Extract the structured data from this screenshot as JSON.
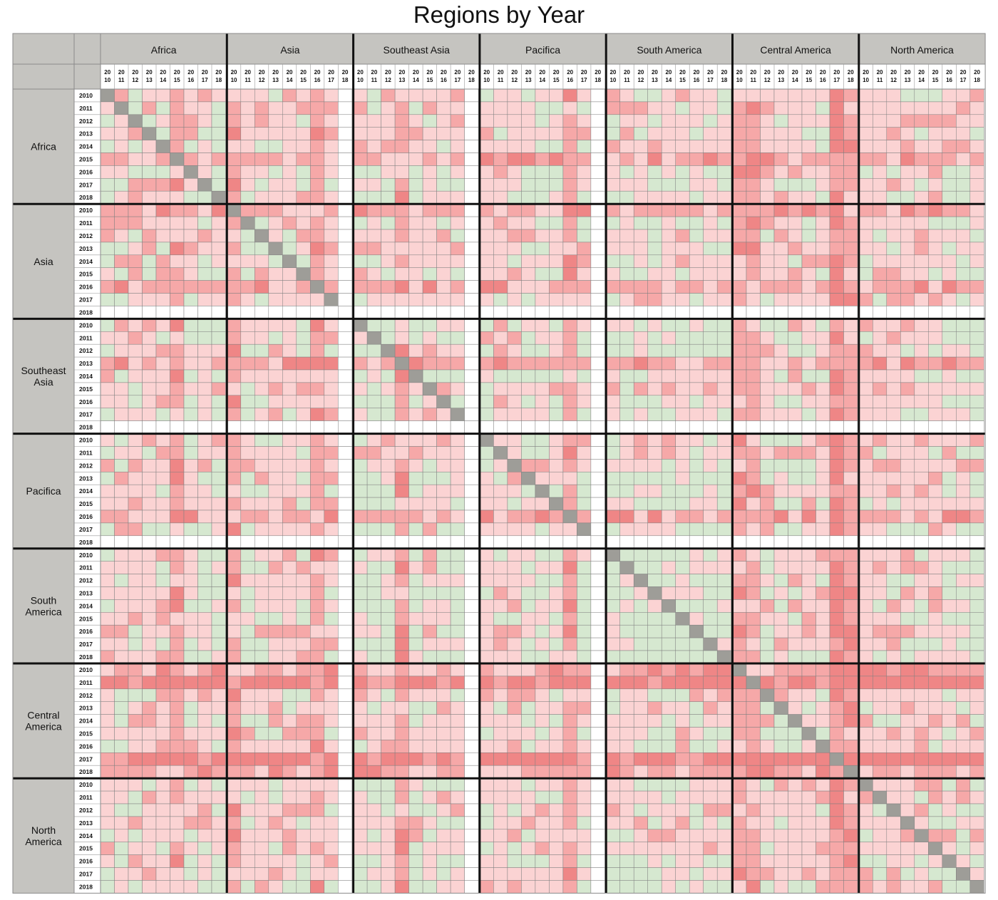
{
  "chart_data": {
    "type": "heatmap",
    "title": "Regions by Year",
    "regions": [
      "Africa",
      "Asia",
      "Southeast Asia",
      "Pacifica",
      "South America",
      "Central America",
      "North America"
    ],
    "row_region_labels": [
      [
        "Africa"
      ],
      [
        "Asia"
      ],
      [
        "Southeast",
        "Asia"
      ],
      [
        "Pacifica"
      ],
      [
        "South",
        "America"
      ],
      [
        "Central",
        "America"
      ],
      [
        "North",
        "America"
      ]
    ],
    "years": [
      "2010",
      "2011",
      "2012",
      "2013",
      "2014",
      "2015",
      "2016",
      "2017",
      "2018"
    ],
    "column_year_labels": [
      [
        "20",
        "10"
      ],
      [
        "20",
        "11"
      ],
      [
        "20",
        "12"
      ],
      [
        "20",
        "13"
      ],
      [
        "20",
        "14"
      ],
      [
        "20",
        "15"
      ],
      [
        "20",
        "16"
      ],
      [
        "20",
        "17"
      ],
      [
        "20",
        "18"
      ]
    ],
    "cell_scale": [
      "low",
      "medium",
      "high",
      "very high"
    ],
    "colors": {
      "low": "#d6e8d0",
      "medium": "#fbd3d3",
      "high": "#f6a8a8",
      "very_high": "#ef8686",
      "self": "#9e9d98",
      "missing": "#ffffff",
      "header": "#c5c4c0"
    },
    "row_year_intensity": [
      [
        1,
        1,
        1,
        1,
        1,
        2,
        0,
        0,
        0
      ],
      [
        2,
        0,
        1,
        1,
        1,
        1,
        2,
        1,
        -1
      ],
      [
        0,
        0,
        0,
        2,
        0,
        1,
        0,
        0,
        -1
      ],
      [
        1,
        1,
        1,
        0,
        0,
        0,
        2,
        0,
        -1
      ],
      [
        0,
        0,
        0,
        0,
        0,
        0,
        0,
        0,
        0
      ],
      [
        2,
        3,
        1,
        1,
        1,
        1,
        1,
        3,
        2
      ],
      [
        1,
        1,
        1,
        1,
        1,
        1,
        0,
        0,
        0
      ]
    ],
    "col_year_intensity": [
      [
        1,
        1,
        1,
        1,
        1,
        2,
        0,
        0,
        0
      ],
      [
        2,
        0,
        1,
        1,
        1,
        1,
        2,
        1,
        -1
      ],
      [
        0,
        0,
        0,
        2,
        0,
        1,
        0,
        0,
        -1
      ],
      [
        1,
        1,
        1,
        0,
        0,
        0,
        2,
        0,
        -1
      ],
      [
        0,
        0,
        0,
        0,
        0,
        0,
        0,
        0,
        0
      ],
      [
        2,
        2,
        1,
        1,
        1,
        1,
        1,
        3,
        2
      ],
      [
        1,
        1,
        1,
        1,
        1,
        1,
        0,
        0,
        0
      ]
    ]
  }
}
